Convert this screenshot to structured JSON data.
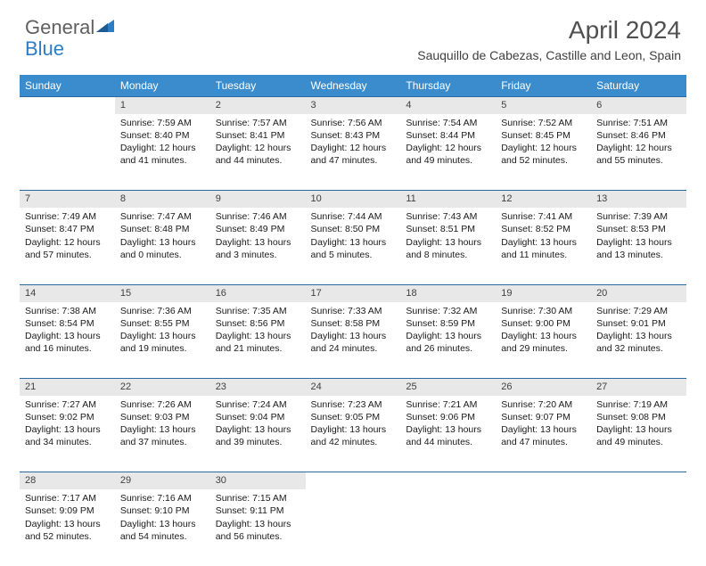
{
  "logo": {
    "text_general": "General",
    "text_blue": "Blue",
    "shape_color": "#2b7dc4"
  },
  "header": {
    "month_title": "April 2024",
    "location": "Sauquillo de Cabezas, Castille and Leon, Spain"
  },
  "colors": {
    "header_bg": "#3b8ccc",
    "daynum_bg": "#e8e8e8",
    "border": "#2b6aa0",
    "text": "#1a1a1a",
    "title_text": "#505050"
  },
  "days_of_week": [
    "Sunday",
    "Monday",
    "Tuesday",
    "Wednesday",
    "Thursday",
    "Friday",
    "Saturday"
  ],
  "weeks": [
    [
      null,
      {
        "num": "1",
        "sunrise": "7:59 AM",
        "sunset": "8:40 PM",
        "daylight": "12 hours and 41 minutes."
      },
      {
        "num": "2",
        "sunrise": "7:57 AM",
        "sunset": "8:41 PM",
        "daylight": "12 hours and 44 minutes."
      },
      {
        "num": "3",
        "sunrise": "7:56 AM",
        "sunset": "8:43 PM",
        "daylight": "12 hours and 47 minutes."
      },
      {
        "num": "4",
        "sunrise": "7:54 AM",
        "sunset": "8:44 PM",
        "daylight": "12 hours and 49 minutes."
      },
      {
        "num": "5",
        "sunrise": "7:52 AM",
        "sunset": "8:45 PM",
        "daylight": "12 hours and 52 minutes."
      },
      {
        "num": "6",
        "sunrise": "7:51 AM",
        "sunset": "8:46 PM",
        "daylight": "12 hours and 55 minutes."
      }
    ],
    [
      {
        "num": "7",
        "sunrise": "7:49 AM",
        "sunset": "8:47 PM",
        "daylight": "12 hours and 57 minutes."
      },
      {
        "num": "8",
        "sunrise": "7:47 AM",
        "sunset": "8:48 PM",
        "daylight": "13 hours and 0 minutes."
      },
      {
        "num": "9",
        "sunrise": "7:46 AM",
        "sunset": "8:49 PM",
        "daylight": "13 hours and 3 minutes."
      },
      {
        "num": "10",
        "sunrise": "7:44 AM",
        "sunset": "8:50 PM",
        "daylight": "13 hours and 5 minutes."
      },
      {
        "num": "11",
        "sunrise": "7:43 AM",
        "sunset": "8:51 PM",
        "daylight": "13 hours and 8 minutes."
      },
      {
        "num": "12",
        "sunrise": "7:41 AM",
        "sunset": "8:52 PM",
        "daylight": "13 hours and 11 minutes."
      },
      {
        "num": "13",
        "sunrise": "7:39 AM",
        "sunset": "8:53 PM",
        "daylight": "13 hours and 13 minutes."
      }
    ],
    [
      {
        "num": "14",
        "sunrise": "7:38 AM",
        "sunset": "8:54 PM",
        "daylight": "13 hours and 16 minutes."
      },
      {
        "num": "15",
        "sunrise": "7:36 AM",
        "sunset": "8:55 PM",
        "daylight": "13 hours and 19 minutes."
      },
      {
        "num": "16",
        "sunrise": "7:35 AM",
        "sunset": "8:56 PM",
        "daylight": "13 hours and 21 minutes."
      },
      {
        "num": "17",
        "sunrise": "7:33 AM",
        "sunset": "8:58 PM",
        "daylight": "13 hours and 24 minutes."
      },
      {
        "num": "18",
        "sunrise": "7:32 AM",
        "sunset": "8:59 PM",
        "daylight": "13 hours and 26 minutes."
      },
      {
        "num": "19",
        "sunrise": "7:30 AM",
        "sunset": "9:00 PM",
        "daylight": "13 hours and 29 minutes."
      },
      {
        "num": "20",
        "sunrise": "7:29 AM",
        "sunset": "9:01 PM",
        "daylight": "13 hours and 32 minutes."
      }
    ],
    [
      {
        "num": "21",
        "sunrise": "7:27 AM",
        "sunset": "9:02 PM",
        "daylight": "13 hours and 34 minutes."
      },
      {
        "num": "22",
        "sunrise": "7:26 AM",
        "sunset": "9:03 PM",
        "daylight": "13 hours and 37 minutes."
      },
      {
        "num": "23",
        "sunrise": "7:24 AM",
        "sunset": "9:04 PM",
        "daylight": "13 hours and 39 minutes."
      },
      {
        "num": "24",
        "sunrise": "7:23 AM",
        "sunset": "9:05 PM",
        "daylight": "13 hours and 42 minutes."
      },
      {
        "num": "25",
        "sunrise": "7:21 AM",
        "sunset": "9:06 PM",
        "daylight": "13 hours and 44 minutes."
      },
      {
        "num": "26",
        "sunrise": "7:20 AM",
        "sunset": "9:07 PM",
        "daylight": "13 hours and 47 minutes."
      },
      {
        "num": "27",
        "sunrise": "7:19 AM",
        "sunset": "9:08 PM",
        "daylight": "13 hours and 49 minutes."
      }
    ],
    [
      {
        "num": "28",
        "sunrise": "7:17 AM",
        "sunset": "9:09 PM",
        "daylight": "13 hours and 52 minutes."
      },
      {
        "num": "29",
        "sunrise": "7:16 AM",
        "sunset": "9:10 PM",
        "daylight": "13 hours and 54 minutes."
      },
      {
        "num": "30",
        "sunrise": "7:15 AM",
        "sunset": "9:11 PM",
        "daylight": "13 hours and 56 minutes."
      },
      null,
      null,
      null,
      null
    ]
  ]
}
